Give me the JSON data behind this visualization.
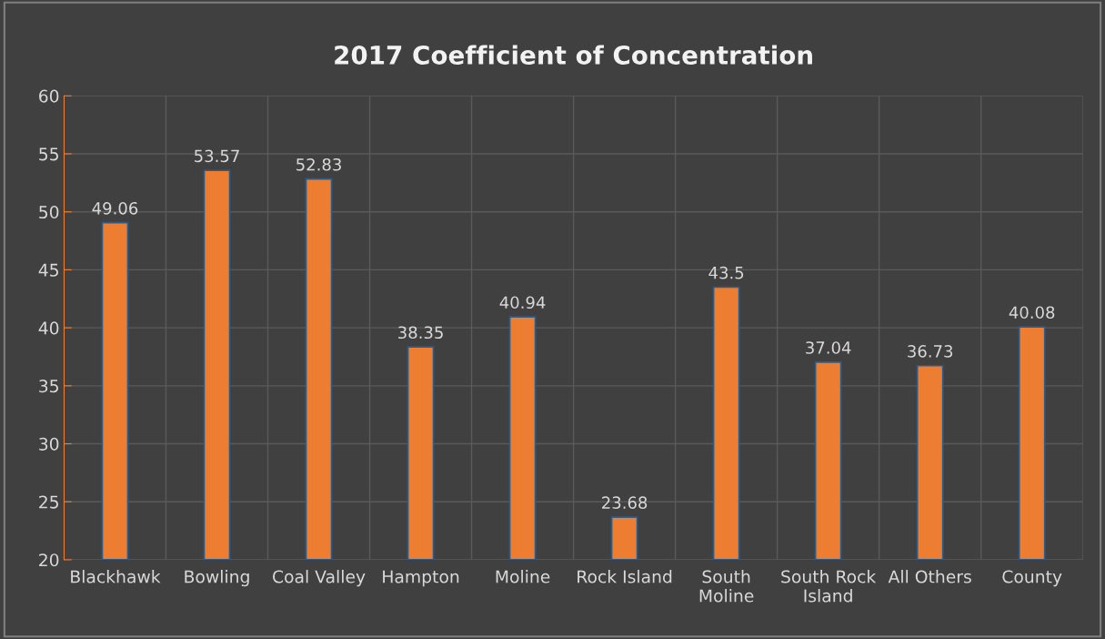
{
  "chart_data": {
    "type": "bar",
    "title": "2017 Coefficient of Concentration",
    "categories": [
      "Blackhawk",
      "Bowling",
      "Coal Valley",
      "Hampton",
      "Moline",
      "Rock Island",
      "South\nMoline",
      "South Rock\nIsland",
      "All Others",
      "County"
    ],
    "values": [
      49.06,
      53.57,
      52.83,
      38.35,
      40.94,
      23.68,
      43.5,
      37.04,
      36.73,
      40.08
    ],
    "color": "#ed7d31",
    "ylim": [
      20,
      60
    ],
    "yticks": [
      20,
      25,
      30,
      35,
      40,
      45,
      50,
      55,
      60
    ],
    "grid": true,
    "data_labels": true
  }
}
